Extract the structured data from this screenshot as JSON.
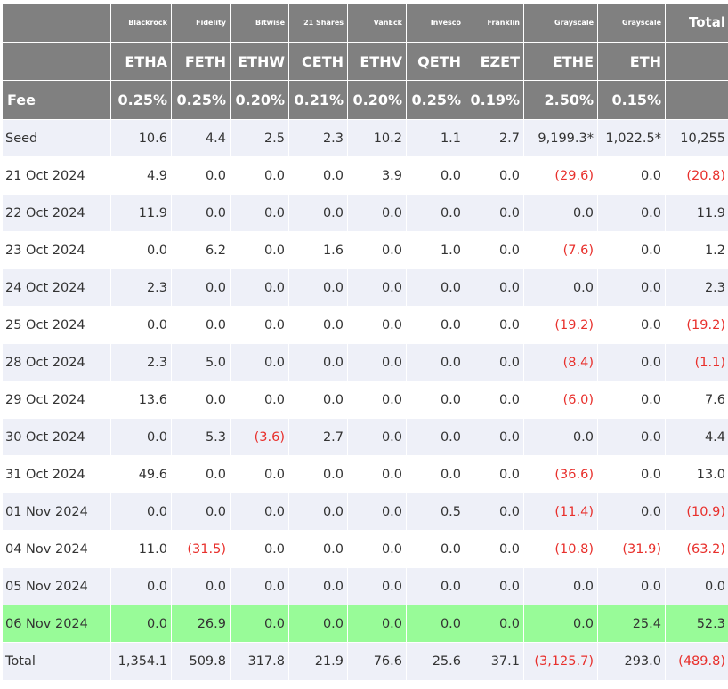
{
  "header": {
    "issuers": [
      "Blackrock",
      "Fidelity",
      "Bitwise",
      "21 Shares",
      "VanEck",
      "Invesco",
      "Franklin",
      "Grayscale",
      "Grayscale"
    ],
    "total_label": "Total",
    "tickers": [
      "ETHA",
      "FETH",
      "ETHW",
      "CETH",
      "ETHV",
      "QETH",
      "EZET",
      "ETHE",
      "ETH"
    ],
    "fee_label": "Fee",
    "fees": [
      "0.25%",
      "0.25%",
      "0.20%",
      "0.21%",
      "0.20%",
      "0.25%",
      "0.19%",
      "2.50%",
      "0.15%"
    ]
  },
  "rows": [
    {
      "label": "Seed",
      "values": [
        "10.6",
        "4.4",
        "2.5",
        "2.3",
        "10.2",
        "1.1",
        "2.7",
        "9,199.3*",
        "1,022.5*",
        "10,255"
      ]
    },
    {
      "label": "21 Oct 2024",
      "values": [
        "4.9",
        "0.0",
        "0.0",
        "0.0",
        "3.9",
        "0.0",
        "0.0",
        "(29.6)",
        "0.0",
        "(20.8)"
      ]
    },
    {
      "label": "22 Oct 2024",
      "values": [
        "11.9",
        "0.0",
        "0.0",
        "0.0",
        "0.0",
        "0.0",
        "0.0",
        "0.0",
        "0.0",
        "11.9"
      ]
    },
    {
      "label": "23 Oct 2024",
      "values": [
        "0.0",
        "6.2",
        "0.0",
        "1.6",
        "0.0",
        "1.0",
        "0.0",
        "(7.6)",
        "0.0",
        "1.2"
      ]
    },
    {
      "label": "24 Oct 2024",
      "values": [
        "2.3",
        "0.0",
        "0.0",
        "0.0",
        "0.0",
        "0.0",
        "0.0",
        "0.0",
        "0.0",
        "2.3"
      ]
    },
    {
      "label": "25 Oct 2024",
      "values": [
        "0.0",
        "0.0",
        "0.0",
        "0.0",
        "0.0",
        "0.0",
        "0.0",
        "(19.2)",
        "0.0",
        "(19.2)"
      ]
    },
    {
      "label": "28 Oct 2024",
      "values": [
        "2.3",
        "5.0",
        "0.0",
        "0.0",
        "0.0",
        "0.0",
        "0.0",
        "(8.4)",
        "0.0",
        "(1.1)"
      ]
    },
    {
      "label": "29 Oct 2024",
      "values": [
        "13.6",
        "0.0",
        "0.0",
        "0.0",
        "0.0",
        "0.0",
        "0.0",
        "(6.0)",
        "0.0",
        "7.6"
      ]
    },
    {
      "label": "30 Oct 2024",
      "values": [
        "0.0",
        "5.3",
        "(3.6)",
        "2.7",
        "0.0",
        "0.0",
        "0.0",
        "0.0",
        "0.0",
        "4.4"
      ]
    },
    {
      "label": "31 Oct 2024",
      "values": [
        "49.6",
        "0.0",
        "0.0",
        "0.0",
        "0.0",
        "0.0",
        "0.0",
        "(36.6)",
        "0.0",
        "13.0"
      ]
    },
    {
      "label": "01 Nov 2024",
      "values": [
        "0.0",
        "0.0",
        "0.0",
        "0.0",
        "0.0",
        "0.5",
        "0.0",
        "(11.4)",
        "0.0",
        "(10.9)"
      ]
    },
    {
      "label": "04 Nov 2024",
      "values": [
        "11.0",
        "(31.5)",
        "0.0",
        "0.0",
        "0.0",
        "0.0",
        "0.0",
        "(10.8)",
        "(31.9)",
        "(63.2)"
      ]
    },
    {
      "label": "05 Nov 2024",
      "values": [
        "0.0",
        "0.0",
        "0.0",
        "0.0",
        "0.0",
        "0.0",
        "0.0",
        "0.0",
        "0.0",
        "0.0"
      ]
    },
    {
      "label": "06 Nov 2024",
      "values": [
        "0.0",
        "26.9",
        "0.0",
        "0.0",
        "0.0",
        "0.0",
        "0.0",
        "0.0",
        "25.4",
        "52.3"
      ]
    },
    {
      "label": "Total",
      "values": [
        "1,354.1",
        "509.8",
        "317.8",
        "21.9",
        "76.6",
        "25.6",
        "37.1",
        "(3,125.7)",
        "293.0",
        "(489.8)"
      ]
    }
  ],
  "colors": {
    "header_bg": "#808080",
    "row_alt_bg": "#eef0f8",
    "highlight_bg": "#98fb98",
    "negative": "#e8302c"
  }
}
